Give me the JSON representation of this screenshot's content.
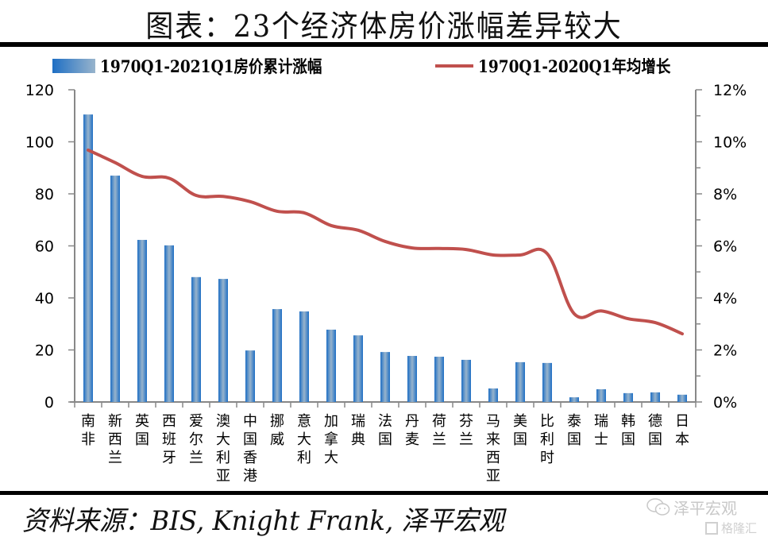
{
  "header": {
    "title": "图表：23个经济体房价涨幅差异较大"
  },
  "legend": {
    "bar_label": "1970Q1-2021Q1房价累计涨幅",
    "line_label": "1970Q1-2020Q1年均增长"
  },
  "source": {
    "text": "资料来源：BIS, Knight Frank, 泽平宏观"
  },
  "watermark": {
    "text": "泽平宏观",
    "sub_text": "格隆汇",
    "icon": "wechat-icon"
  },
  "colors": {
    "bar": "#1f6fc4",
    "bar_highlight": "#98b4cc",
    "line": "#c0504d",
    "axis": "#888888"
  },
  "chart_data": {
    "type": "bar+line",
    "title": "图表：23个经济体房价涨幅差异较大",
    "xlabel": "",
    "ylabel": "",
    "y2label": "",
    "categories": [
      "南非",
      "新西兰",
      "英国",
      "西班牙",
      "爱尔兰",
      "澳大利亚",
      "中国香港",
      "挪威",
      "意大利",
      "加拿大",
      "瑞典",
      "法国",
      "丹麦",
      "荷兰",
      "芬兰",
      "马来西亚",
      "美国",
      "比利时",
      "泰国",
      "瑞士",
      "韩国",
      "德国",
      "日本"
    ],
    "series": [
      {
        "name": "1970Q1-2021Q1房价累计涨幅",
        "type": "bar",
        "axis": "left",
        "values": [
          110.5,
          87.0,
          62.3,
          60.2,
          48.0,
          47.3,
          19.8,
          35.7,
          34.8,
          27.8,
          25.6,
          19.2,
          17.7,
          17.4,
          16.2,
          5.2,
          15.3,
          15.0,
          1.8,
          4.9,
          3.4,
          3.7,
          2.8
        ]
      },
      {
        "name": "1970Q1-2020Q1年均增长",
        "type": "line",
        "axis": "right",
        "values": [
          0.0968,
          0.092,
          0.0867,
          0.086,
          0.0794,
          0.079,
          0.077,
          0.0733,
          0.0727,
          0.0678,
          0.066,
          0.0617,
          0.0592,
          0.059,
          0.0586,
          0.0565,
          0.0565,
          0.057,
          0.0339,
          0.035,
          0.032,
          0.0305,
          0.0262
        ]
      }
    ],
    "y_left": {
      "min": 0,
      "max": 120,
      "ticks": [
        0,
        20,
        40,
        60,
        80,
        100,
        120
      ],
      "tick_labels": [
        "0",
        "20",
        "40",
        "60",
        "80",
        "100",
        "120"
      ]
    },
    "y_right": {
      "min": 0,
      "max": 0.12,
      "ticks": [
        0,
        0.02,
        0.04,
        0.06,
        0.08,
        0.1,
        0.12
      ],
      "tick_labels": [
        "0%",
        "2%",
        "4%",
        "6%",
        "8%",
        "10%",
        "12%"
      ]
    },
    "grid": false,
    "legend_position": "top"
  }
}
